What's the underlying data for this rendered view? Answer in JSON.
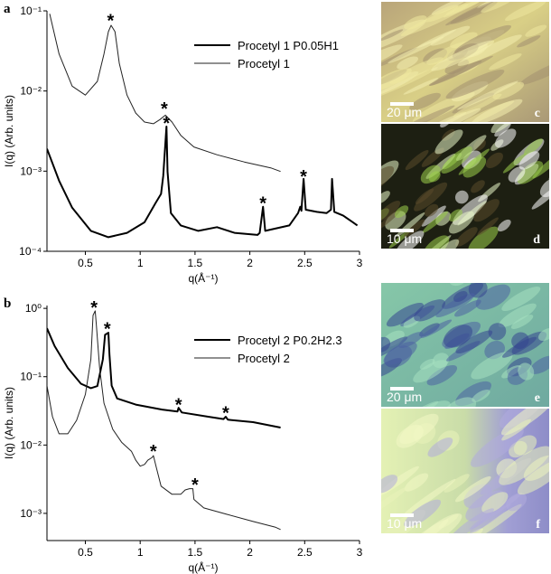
{
  "chart_data": [
    {
      "type": "line",
      "panel_label": "a",
      "x_label": "q(Å⁻¹)",
      "y_label": "I(q) (Arb. units)",
      "xlim": [
        0.15,
        3.0
      ],
      "xticks": [
        0.5,
        1.0,
        1.5,
        2.0,
        2.5,
        3.0
      ],
      "ylim": [
        0.0001,
        0.1
      ],
      "log_y": true,
      "yticks": [
        {
          "value": 0.0001,
          "label": "10⁻⁴"
        },
        {
          "value": 0.001,
          "label": "10⁻³"
        },
        {
          "value": 0.01,
          "label": "10⁻²"
        },
        {
          "value": 0.1,
          "label": "10⁻¹"
        }
      ],
      "legend": "upper right",
      "series": [
        {
          "name": "Procetyl 1 P0.05H1",
          "color": "#000000",
          "linewidth": 2,
          "x": [
            0.15,
            0.26,
            0.38,
            0.55,
            0.71,
            0.88,
            1.04,
            1.14,
            1.19,
            1.21,
            1.24,
            1.25,
            1.28,
            1.37,
            1.53,
            1.7,
            1.86,
            2.07,
            2.09,
            2.12,
            2.14,
            2.36,
            2.44,
            2.46,
            2.47,
            2.49,
            2.51,
            2.61,
            2.7,
            2.74,
            2.75,
            2.77,
            2.85,
            2.94,
            2.98
          ],
          "values": [
            0.0019,
            0.00076,
            0.00035,
            0.00018,
            0.00015,
            0.00017,
            0.00023,
            0.0004,
            0.00052,
            0.00087,
            0.0036,
            0.00098,
            0.0003,
            0.00021,
            0.00018,
            0.0002,
            0.00017,
            0.00016,
            0.00017,
            0.00036,
            0.00018,
            0.00021,
            0.0003,
            0.00036,
            0.00032,
            0.0008,
            0.00033,
            0.00031,
            0.0003,
            0.00033,
            0.0008,
            0.00031,
            0.00028,
            0.00023,
            0.00021
          ]
        },
        {
          "name": "Procetyl 1",
          "color": "#222222",
          "linewidth": 1,
          "x": [
            0.175,
            0.26,
            0.38,
            0.5,
            0.61,
            0.67,
            0.71,
            0.735,
            0.77,
            0.81,
            0.88,
            0.96,
            1.04,
            1.12,
            1.18,
            1.23,
            1.29,
            1.37,
            1.49,
            1.7,
            1.95,
            2.19,
            2.28
          ],
          "values": [
            0.092,
            0.029,
            0.0115,
            0.0089,
            0.0132,
            0.029,
            0.055,
            0.066,
            0.055,
            0.022,
            0.0089,
            0.0053,
            0.0041,
            0.0039,
            0.0044,
            0.005,
            0.0041,
            0.0028,
            0.002,
            0.0016,
            0.0013,
            0.0011,
            0.00099
          ]
        }
      ],
      "annotations": [
        {
          "text": "*",
          "x": 0.73,
          "y": 0.07
        },
        {
          "text": "*",
          "x": 1.22,
          "y": 0.0056
        },
        {
          "text": "*",
          "x": 1.24,
          "y": 0.0037
        },
        {
          "text": "*",
          "x": 2.12,
          "y": 0.00037
        },
        {
          "text": "*",
          "x": 2.49,
          "y": 0.0008
        }
      ]
    },
    {
      "type": "line",
      "panel_label": "b",
      "x_label": "q(Å⁻¹)",
      "y_label": "I(q) (Arb. units)",
      "xlim": [
        0.15,
        3.0
      ],
      "xticks": [
        0.5,
        1.0,
        1.5,
        2.0,
        2.5,
        3.0
      ],
      "ylim": [
        0.0004,
        1.1
      ],
      "log_y": true,
      "yticks": [
        {
          "value": 0.001,
          "label": "10⁻³"
        },
        {
          "value": 0.01,
          "label": "10⁻²"
        },
        {
          "value": 0.1,
          "label": "10⁻¹"
        },
        {
          "value": 1,
          "label": "10⁰"
        }
      ],
      "legend": "upper right",
      "series": [
        {
          "name": "Procetyl 2 P0.2H2.3",
          "color": "#000000",
          "linewidth": 2,
          "x": [
            0.15,
            0.22,
            0.34,
            0.46,
            0.55,
            0.61,
            0.66,
            0.68,
            0.71,
            0.72,
            0.74,
            0.79,
            0.96,
            1.2,
            1.34,
            1.35,
            1.38,
            1.62,
            1.76,
            1.78,
            1.8,
            2.03,
            2.28
          ],
          "values": [
            0.51,
            0.28,
            0.134,
            0.079,
            0.068,
            0.073,
            0.18,
            0.41,
            0.44,
            0.21,
            0.074,
            0.048,
            0.039,
            0.033,
            0.031,
            0.035,
            0.03,
            0.026,
            0.024,
            0.026,
            0.0235,
            0.0216,
            0.018
          ]
        },
        {
          "name": "Procetyl 2",
          "color": "#222222",
          "linewidth": 1,
          "x": [
            0.15,
            0.2,
            0.26,
            0.34,
            0.42,
            0.5,
            0.55,
            0.57,
            0.59,
            0.6,
            0.63,
            0.67,
            0.75,
            0.83,
            0.92,
            0.96,
            1.0,
            1.04,
            1.07,
            1.11,
            1.12,
            1.15,
            1.19,
            1.29,
            1.37,
            1.41,
            1.45,
            1.48,
            1.49,
            1.58,
            1.78,
            2.03,
            2.23,
            2.28
          ],
          "values": [
            0.074,
            0.026,
            0.0146,
            0.0146,
            0.023,
            0.055,
            0.18,
            0.79,
            0.92,
            0.59,
            0.134,
            0.041,
            0.017,
            0.011,
            0.0081,
            0.006,
            0.0049,
            0.0052,
            0.006,
            0.0066,
            0.007,
            0.0045,
            0.0025,
            0.0019,
            0.0019,
            0.0022,
            0.0023,
            0.0023,
            0.0016,
            0.0012,
            0.00098,
            0.00076,
            0.00063,
            0.00058
          ]
        }
      ],
      "annotations": [
        {
          "text": "*",
          "x": 0.58,
          "y": 0.95
        },
        {
          "text": "*",
          "x": 0.7,
          "y": 0.46
        },
        {
          "text": "*",
          "x": 1.12,
          "y": 0.0075
        },
        {
          "text": "*",
          "x": 1.35,
          "y": 0.036
        },
        {
          "text": "*",
          "x": 1.5,
          "y": 0.0024
        },
        {
          "text": "*",
          "x": 1.78,
          "y": 0.027
        }
      ]
    }
  ],
  "micrographs": [
    {
      "scale_bar": "20 μm",
      "label": "c"
    },
    {
      "scale_bar": "10 μm",
      "label": "d"
    },
    {
      "scale_bar": "20 μm",
      "label": "e"
    },
    {
      "scale_bar": "10 μm",
      "label": "f"
    }
  ]
}
